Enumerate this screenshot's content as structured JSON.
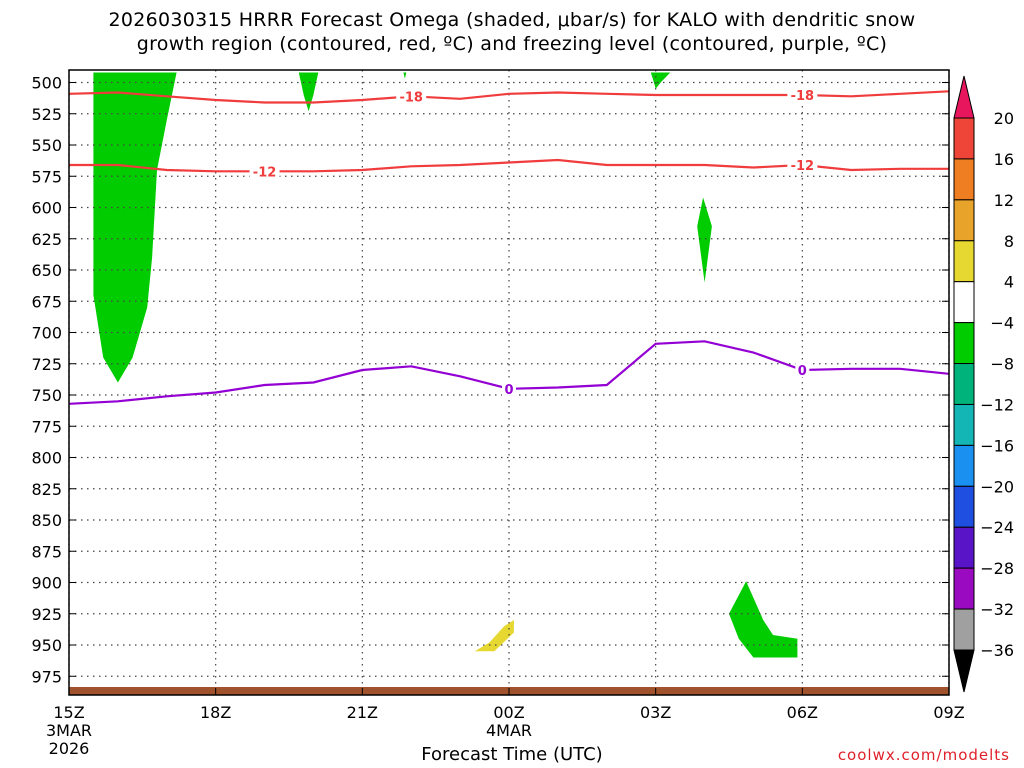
{
  "title": {
    "line1": "2026030315 HRRR Forecast Omega (shaded, μbar/s) for KALO with dendritic snow",
    "line2": "growth region (contoured, red, ºC) and freezing level (contoured, purple, ºC)"
  },
  "credit": "coolwx.com/modelts",
  "chart_data": {
    "type": "area",
    "title": "2026030315 HRRR Forecast Omega (shaded, μbar/s) for KALO with dendritic snow growth region (contoured, red, ºC) and freezing level (contoured, purple, ºC)",
    "xlabel": "Forecast Time (UTC)",
    "ylabel": "",
    "x_range_hours": [
      15,
      33
    ],
    "y_range_hpa": [
      490,
      990
    ],
    "y_reversed": true,
    "grid": true,
    "x_ticks": [
      {
        "hour": 15,
        "label": "15Z",
        "sub1": "3MAR",
        "sub2": "2026"
      },
      {
        "hour": 18,
        "label": "18Z",
        "sub1": "",
        "sub2": ""
      },
      {
        "hour": 21,
        "label": "21Z",
        "sub1": "",
        "sub2": ""
      },
      {
        "hour": 24,
        "label": "00Z",
        "sub1": "4MAR",
        "sub2": ""
      },
      {
        "hour": 27,
        "label": "03Z",
        "sub1": "",
        "sub2": ""
      },
      {
        "hour": 30,
        "label": "06Z",
        "sub1": "",
        "sub2": ""
      },
      {
        "hour": 33,
        "label": "09Z",
        "sub1": "",
        "sub2": ""
      }
    ],
    "y_ticks": [
      500,
      525,
      550,
      575,
      600,
      625,
      650,
      675,
      700,
      725,
      750,
      775,
      800,
      825,
      850,
      875,
      900,
      925,
      950,
      975
    ],
    "colorbar": {
      "labels": [
        "20",
        "16",
        "12",
        "8",
        "4",
        "−4",
        "−8",
        "−12",
        "−16",
        "−20",
        "−24",
        "−28",
        "−32",
        "−36"
      ],
      "colors_top_to_bottom": [
        "#e8175d",
        "#ef4438",
        "#ef7d22",
        "#e8a42a",
        "#e6d830",
        "#ffffff",
        "#00cc00",
        "#00b37a",
        "#14b5b5",
        "#1a90f0",
        "#1f4fe0",
        "#5a14c8",
        "#9a0ac0",
        "#a0a0a0",
        "#000000"
      ]
    },
    "omega_regions": [
      {
        "name": "green-column",
        "color": "#00cc00",
        "points": [
          [
            15.5,
            492
          ],
          [
            17.2,
            492
          ],
          [
            17.0,
            530
          ],
          [
            16.8,
            570
          ],
          [
            16.7,
            640
          ],
          [
            16.6,
            680
          ],
          [
            16.3,
            720
          ],
          [
            16.0,
            740
          ],
          [
            15.7,
            720
          ],
          [
            15.5,
            670
          ],
          [
            15.5,
            600
          ],
          [
            15.5,
            530
          ]
        ]
      },
      {
        "name": "green-500",
        "color": "#00cc00",
        "points": [
          [
            19.7,
            492
          ],
          [
            20.1,
            492
          ],
          [
            20.0,
            510
          ],
          [
            19.9,
            523
          ],
          [
            19.8,
            510
          ]
        ]
      },
      {
        "name": "green-500b",
        "color": "#00cc00",
        "points": [
          [
            21.84,
            492
          ],
          [
            21.9,
            492
          ],
          [
            21.87,
            497
          ]
        ]
      },
      {
        "name": "green-03z",
        "color": "#00cc00",
        "points": [
          [
            26.9,
            492
          ],
          [
            27.3,
            492
          ],
          [
            27.1,
            500
          ],
          [
            27.0,
            505
          ],
          [
            26.95,
            498
          ]
        ]
      },
      {
        "name": "green-04z",
        "color": "#00cc00",
        "points": [
          [
            27.97,
            592
          ],
          [
            28.15,
            615
          ],
          [
            28.0,
            660
          ],
          [
            27.85,
            615
          ]
        ]
      },
      {
        "name": "green-lower",
        "color": "#00cc00",
        "points": [
          [
            28.5,
            925
          ],
          [
            28.85,
            899
          ],
          [
            29.2,
            930
          ],
          [
            29.4,
            942
          ],
          [
            29.9,
            945
          ],
          [
            29.9,
            960
          ],
          [
            29.0,
            960
          ],
          [
            28.7,
            945
          ]
        ]
      },
      {
        "name": "yellow-lower",
        "color": "#e6d830",
        "points": [
          [
            23.7,
            955
          ],
          [
            24.1,
            940
          ],
          [
            24.1,
            930
          ],
          [
            23.9,
            935
          ],
          [
            23.6,
            948
          ],
          [
            23.3,
            955
          ]
        ]
      }
    ],
    "freezing_level_0C": {
      "color": "#9400d3",
      "label": "0",
      "points": [
        [
          15,
          757
        ],
        [
          16,
          755
        ],
        [
          17,
          751
        ],
        [
          18,
          748
        ],
        [
          19,
          742
        ],
        [
          20,
          740
        ],
        [
          21,
          730
        ],
        [
          22,
          727
        ],
        [
          23,
          735
        ],
        [
          24,
          745
        ],
        [
          25,
          744
        ],
        [
          26,
          742
        ],
        [
          27,
          709
        ],
        [
          28,
          707
        ],
        [
          29,
          716
        ],
        [
          30,
          730
        ],
        [
          31,
          729
        ],
        [
          32,
          729
        ],
        [
          33,
          733
        ]
      ]
    },
    "temperature_contours": [
      {
        "label": "-18",
        "color": "#f03c3c",
        "points": [
          [
            15,
            509
          ],
          [
            16,
            508
          ],
          [
            17,
            511
          ],
          [
            18,
            514
          ],
          [
            19,
            516
          ],
          [
            20,
            516
          ],
          [
            21,
            514
          ],
          [
            22,
            511
          ],
          [
            23,
            513
          ],
          [
            24,
            509
          ],
          [
            25,
            508
          ],
          [
            26,
            509
          ],
          [
            27,
            510
          ],
          [
            28,
            510
          ],
          [
            29,
            510
          ],
          [
            30,
            510
          ],
          [
            31,
            511
          ],
          [
            32,
            509
          ],
          [
            33,
            507
          ]
        ]
      },
      {
        "label": "-12",
        "color": "#f03c3c",
        "points": [
          [
            15,
            566
          ],
          [
            16,
            566
          ],
          [
            17,
            570
          ],
          [
            18,
            571
          ],
          [
            19,
            571
          ],
          [
            20,
            571
          ],
          [
            21,
            570
          ],
          [
            22,
            567
          ],
          [
            23,
            566
          ],
          [
            24,
            564
          ],
          [
            25,
            562
          ],
          [
            26,
            566
          ],
          [
            27,
            566
          ],
          [
            28,
            566
          ],
          [
            29,
            568
          ],
          [
            30,
            566
          ],
          [
            31,
            570
          ],
          [
            32,
            569
          ],
          [
            33,
            569
          ]
        ]
      }
    ],
    "terrain_color": "#a0522d"
  }
}
